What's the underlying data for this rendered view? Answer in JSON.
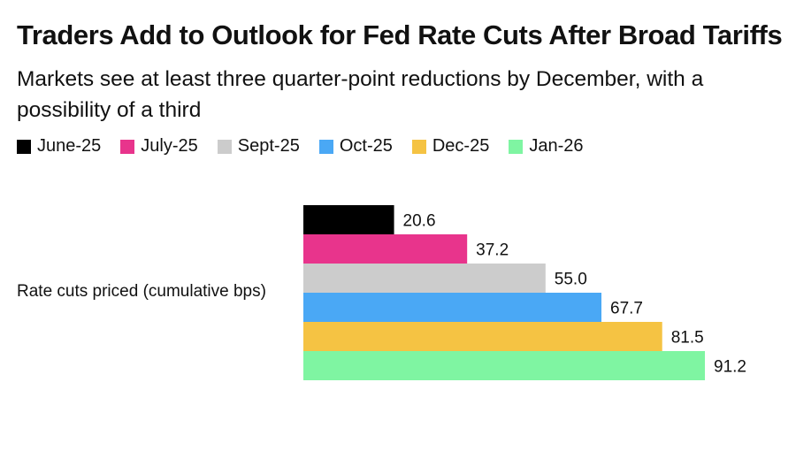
{
  "chart_data": {
    "type": "bar",
    "orientation": "horizontal",
    "title": "Traders Add to Outlook for Fed Rate Cuts After Broad Tariffs",
    "subtitle": "Markets see at least three quarter-point reductions by December, with a possibility of a third",
    "category_label": "Rate cuts priced (cumulative bps)",
    "series": [
      {
        "name": "June-25",
        "value": 20.6,
        "value_label": "20.6",
        "color": "#000000"
      },
      {
        "name": "July-25",
        "value": 37.2,
        "value_label": "37.2",
        "color": "#e8348c"
      },
      {
        "name": "Sept-25",
        "value": 55.0,
        "value_label": "55.0",
        "color": "#cccccc"
      },
      {
        "name": "Oct-25",
        "value": 67.7,
        "value_label": "67.7",
        "color": "#4aa8f5"
      },
      {
        "name": "Dec-25",
        "value": 81.5,
        "value_label": "81.5",
        "color": "#f5c343"
      },
      {
        "name": "Jan-26",
        "value": 91.2,
        "value_label": "91.2",
        "color": "#7ff5a2"
      }
    ],
    "xlim": [
      0,
      91.2
    ],
    "grid": false,
    "legend_position": "top-left"
  }
}
